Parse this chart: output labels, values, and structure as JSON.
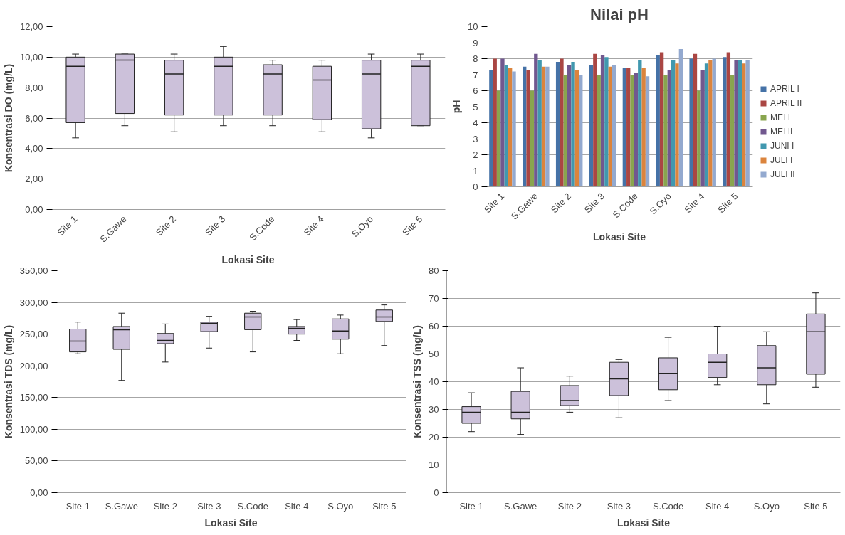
{
  "chart_data": [
    {
      "type": "box",
      "xlabel": "Lokasi Site",
      "ylabel": "Konsentrasi DO (mg/L)",
      "categories": [
        "Site 1",
        "S.Gawe",
        "Site 2",
        "Site 3",
        "S.Code",
        "Site 4",
        "S.Oyo",
        "Site 5"
      ],
      "ylim": [
        0,
        12
      ],
      "yticks": [
        {
          "value": 0,
          "label": "0,00"
        },
        {
          "value": 2,
          "label": "2,00"
        },
        {
          "value": 4,
          "label": "4,00"
        },
        {
          "value": 6,
          "label": "6,00"
        },
        {
          "value": 8,
          "label": "8,00"
        },
        {
          "value": 10,
          "label": "10,00"
        },
        {
          "value": 12,
          "label": "12,00"
        }
      ],
      "grid": "y",
      "series": [
        {
          "color": "#ccc1da",
          "boxes": [
            {
              "low": 4.7,
              "q1": 5.7,
              "median": 9.4,
              "q3": 10.0,
              "high": 10.2
            },
            {
              "low": 5.5,
              "q1": 6.3,
              "median": 9.8,
              "q3": 10.2,
              "high": 10.2
            },
            {
              "low": 5.1,
              "q1": 6.2,
              "median": 8.9,
              "q3": 9.8,
              "high": 10.2
            },
            {
              "low": 5.5,
              "q1": 6.2,
              "median": 9.4,
              "q3": 10.0,
              "high": 10.7
            },
            {
              "low": 5.5,
              "q1": 6.2,
              "median": 8.9,
              "q3": 9.5,
              "high": 9.8
            },
            {
              "low": 5.1,
              "q1": 5.9,
              "median": 8.5,
              "q3": 9.4,
              "high": 9.8
            },
            {
              "low": 4.7,
              "q1": 5.3,
              "median": 8.9,
              "q3": 9.8,
              "high": 10.2
            },
            {
              "low": 5.5,
              "q1": 5.5,
              "median": 9.4,
              "q3": 9.8,
              "high": 10.2
            }
          ]
        }
      ]
    },
    {
      "type": "bar",
      "title": "Nilai pH",
      "xlabel": "Lokasi Site",
      "ylabel": "pH",
      "categories": [
        "Site 1",
        "S.Gawe",
        "Site 2",
        "Site 3",
        "S.Code",
        "S.Oyo",
        "Site 4",
        "Site 5"
      ],
      "ylim": [
        0,
        10
      ],
      "yticks": [
        0,
        1,
        2,
        3,
        4,
        5,
        6,
        7,
        8,
        9,
        10
      ],
      "grid": "y",
      "legend": "right",
      "series": [
        {
          "name": "APRIL I",
          "color": "#4572a7",
          "values": [
            7.3,
            7.5,
            7.8,
            7.6,
            7.4,
            8.2,
            8.0,
            8.1
          ]
        },
        {
          "name": "APRIL II",
          "color": "#aa4643",
          "values": [
            8.0,
            7.3,
            8.0,
            8.3,
            7.4,
            8.4,
            8.3,
            8.4
          ]
        },
        {
          "name": "MEI I",
          "color": "#89a54e",
          "values": [
            6.0,
            6.0,
            7.0,
            7.0,
            7.0,
            7.0,
            6.0,
            7.0
          ]
        },
        {
          "name": "MEI II",
          "color": "#71588f",
          "values": [
            8.0,
            8.3,
            7.6,
            8.2,
            7.1,
            7.3,
            7.3,
            7.9
          ]
        },
        {
          "name": "JUNI I",
          "color": "#4198af",
          "values": [
            7.6,
            7.9,
            7.8,
            8.1,
            7.9,
            7.9,
            7.7,
            7.9
          ]
        },
        {
          "name": "JULI I",
          "color": "#db843d",
          "values": [
            7.4,
            7.5,
            7.3,
            7.5,
            7.4,
            7.7,
            7.9,
            7.7
          ]
        },
        {
          "name": "JULI II",
          "color": "#93a9cf",
          "values": [
            7.2,
            7.5,
            7.0,
            7.6,
            6.9,
            8.6,
            8.0,
            7.9
          ]
        }
      ]
    },
    {
      "type": "box",
      "xlabel": "Lokasi Site",
      "ylabel": "Konsentrasi TDS (mg/L)",
      "categories": [
        "Site 1",
        "S.Gawe",
        "Site 2",
        "Site 3",
        "S.Code",
        "Site 4",
        "S.Oyo",
        "Site 5"
      ],
      "ylim": [
        0,
        350
      ],
      "yticks": [
        {
          "value": 0,
          "label": "0,00"
        },
        {
          "value": 50,
          "label": "50,00"
        },
        {
          "value": 100,
          "label": "100,00"
        },
        {
          "value": 150,
          "label": "150,00"
        },
        {
          "value": 200,
          "label": "200,00"
        },
        {
          "value": 250,
          "label": "250,00"
        },
        {
          "value": 300,
          "label": "300,00"
        },
        {
          "value": 350,
          "label": "350,00"
        }
      ],
      "grid": "y",
      "series": [
        {
          "color": "#ccc1da",
          "boxes": [
            {
              "low": 219,
              "q1": 222,
              "median": 239,
              "q3": 258,
              "high": 269
            },
            {
              "low": 177,
              "q1": 226,
              "median": 257,
              "q3": 262,
              "high": 283
            },
            {
              "low": 206,
              "q1": 235,
              "median": 240,
              "q3": 251,
              "high": 266
            },
            {
              "low": 228,
              "q1": 254,
              "median": 267,
              "q3": 269,
              "high": 278
            },
            {
              "low": 222,
              "q1": 257,
              "median": 277,
              "q3": 283,
              "high": 286
            },
            {
              "low": 240,
              "q1": 250,
              "median": 259,
              "q3": 262,
              "high": 273
            },
            {
              "low": 219,
              "q1": 242,
              "median": 255,
              "q3": 274,
              "high": 280
            },
            {
              "low": 232,
              "q1": 270,
              "median": 277,
              "q3": 288,
              "high": 296
            }
          ]
        }
      ]
    },
    {
      "type": "box",
      "xlabel": "Lokasi Site",
      "ylabel": "Konsentrasi TSS (mg/L)",
      "categories": [
        "Site 1",
        "S.Gawe",
        "Site 2",
        "Site 3",
        "S.Code",
        "Site 4",
        "S.Oyo",
        "Site 5"
      ],
      "ylim": [
        0,
        80
      ],
      "yticks": [
        0,
        10,
        20,
        30,
        40,
        50,
        60,
        70,
        80
      ],
      "grid": "y",
      "series": [
        {
          "color": "#ccc1da",
          "boxes": [
            {
              "low": 22,
              "q1": 25,
              "median": 29,
              "q3": 31,
              "high": 36
            },
            {
              "low": 21,
              "q1": 26.6,
              "median": 29,
              "q3": 36.5,
              "high": 45
            },
            {
              "low": 29,
              "q1": 31.4,
              "median": 33.2,
              "q3": 38.6,
              "high": 42
            },
            {
              "low": 27,
              "q1": 35,
              "median": 41,
              "q3": 47,
              "high": 48
            },
            {
              "low": 33.2,
              "q1": 37.1,
              "median": 43,
              "q3": 48.6,
              "high": 56
            },
            {
              "low": 38.9,
              "q1": 41.5,
              "median": 47,
              "q3": 50,
              "high": 60
            },
            {
              "low": 32,
              "q1": 38.9,
              "median": 45,
              "q3": 53,
              "high": 58
            },
            {
              "low": 38,
              "q1": 42.7,
              "median": 58,
              "q3": 64.4,
              "high": 72
            }
          ]
        }
      ]
    }
  ]
}
